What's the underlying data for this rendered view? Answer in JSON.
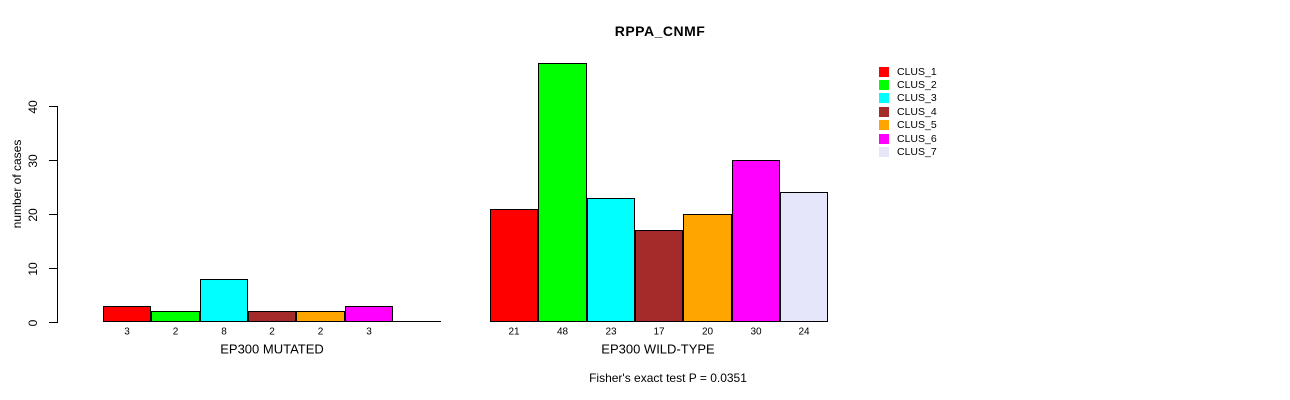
{
  "chart_data": {
    "type": "bar",
    "title": "RPPA_CNMF",
    "ylabel": "number of cases",
    "yticks": [
      0,
      10,
      20,
      30,
      40
    ],
    "ylim": [
      0,
      48
    ],
    "grid": false,
    "legend_position": "right",
    "clusters": [
      "CLUS_1",
      "CLUS_2",
      "CLUS_3",
      "CLUS_4",
      "CLUS_5",
      "CLUS_6",
      "CLUS_7"
    ],
    "colors": [
      "#FF0000",
      "#00FF00",
      "#00FFFF",
      "#A52A2A",
      "#FFA500",
      "#FF00FF",
      "#E6E6FA"
    ],
    "groups": [
      {
        "label": "EP300 MUTATED",
        "values": [
          3,
          2,
          8,
          2,
          2,
          3,
          0
        ],
        "bar_labels": [
          "3",
          "2",
          "8",
          "2",
          "2",
          "3",
          ""
        ]
      },
      {
        "label": "EP300 WILD-TYPE",
        "values": [
          21,
          48,
          23,
          17,
          20,
          30,
          24
        ],
        "bar_labels": [
          "21",
          "48",
          "23",
          "17",
          "20",
          "30",
          "24"
        ]
      }
    ],
    "annotation": "Fisher's exact test P = 0.0351"
  }
}
